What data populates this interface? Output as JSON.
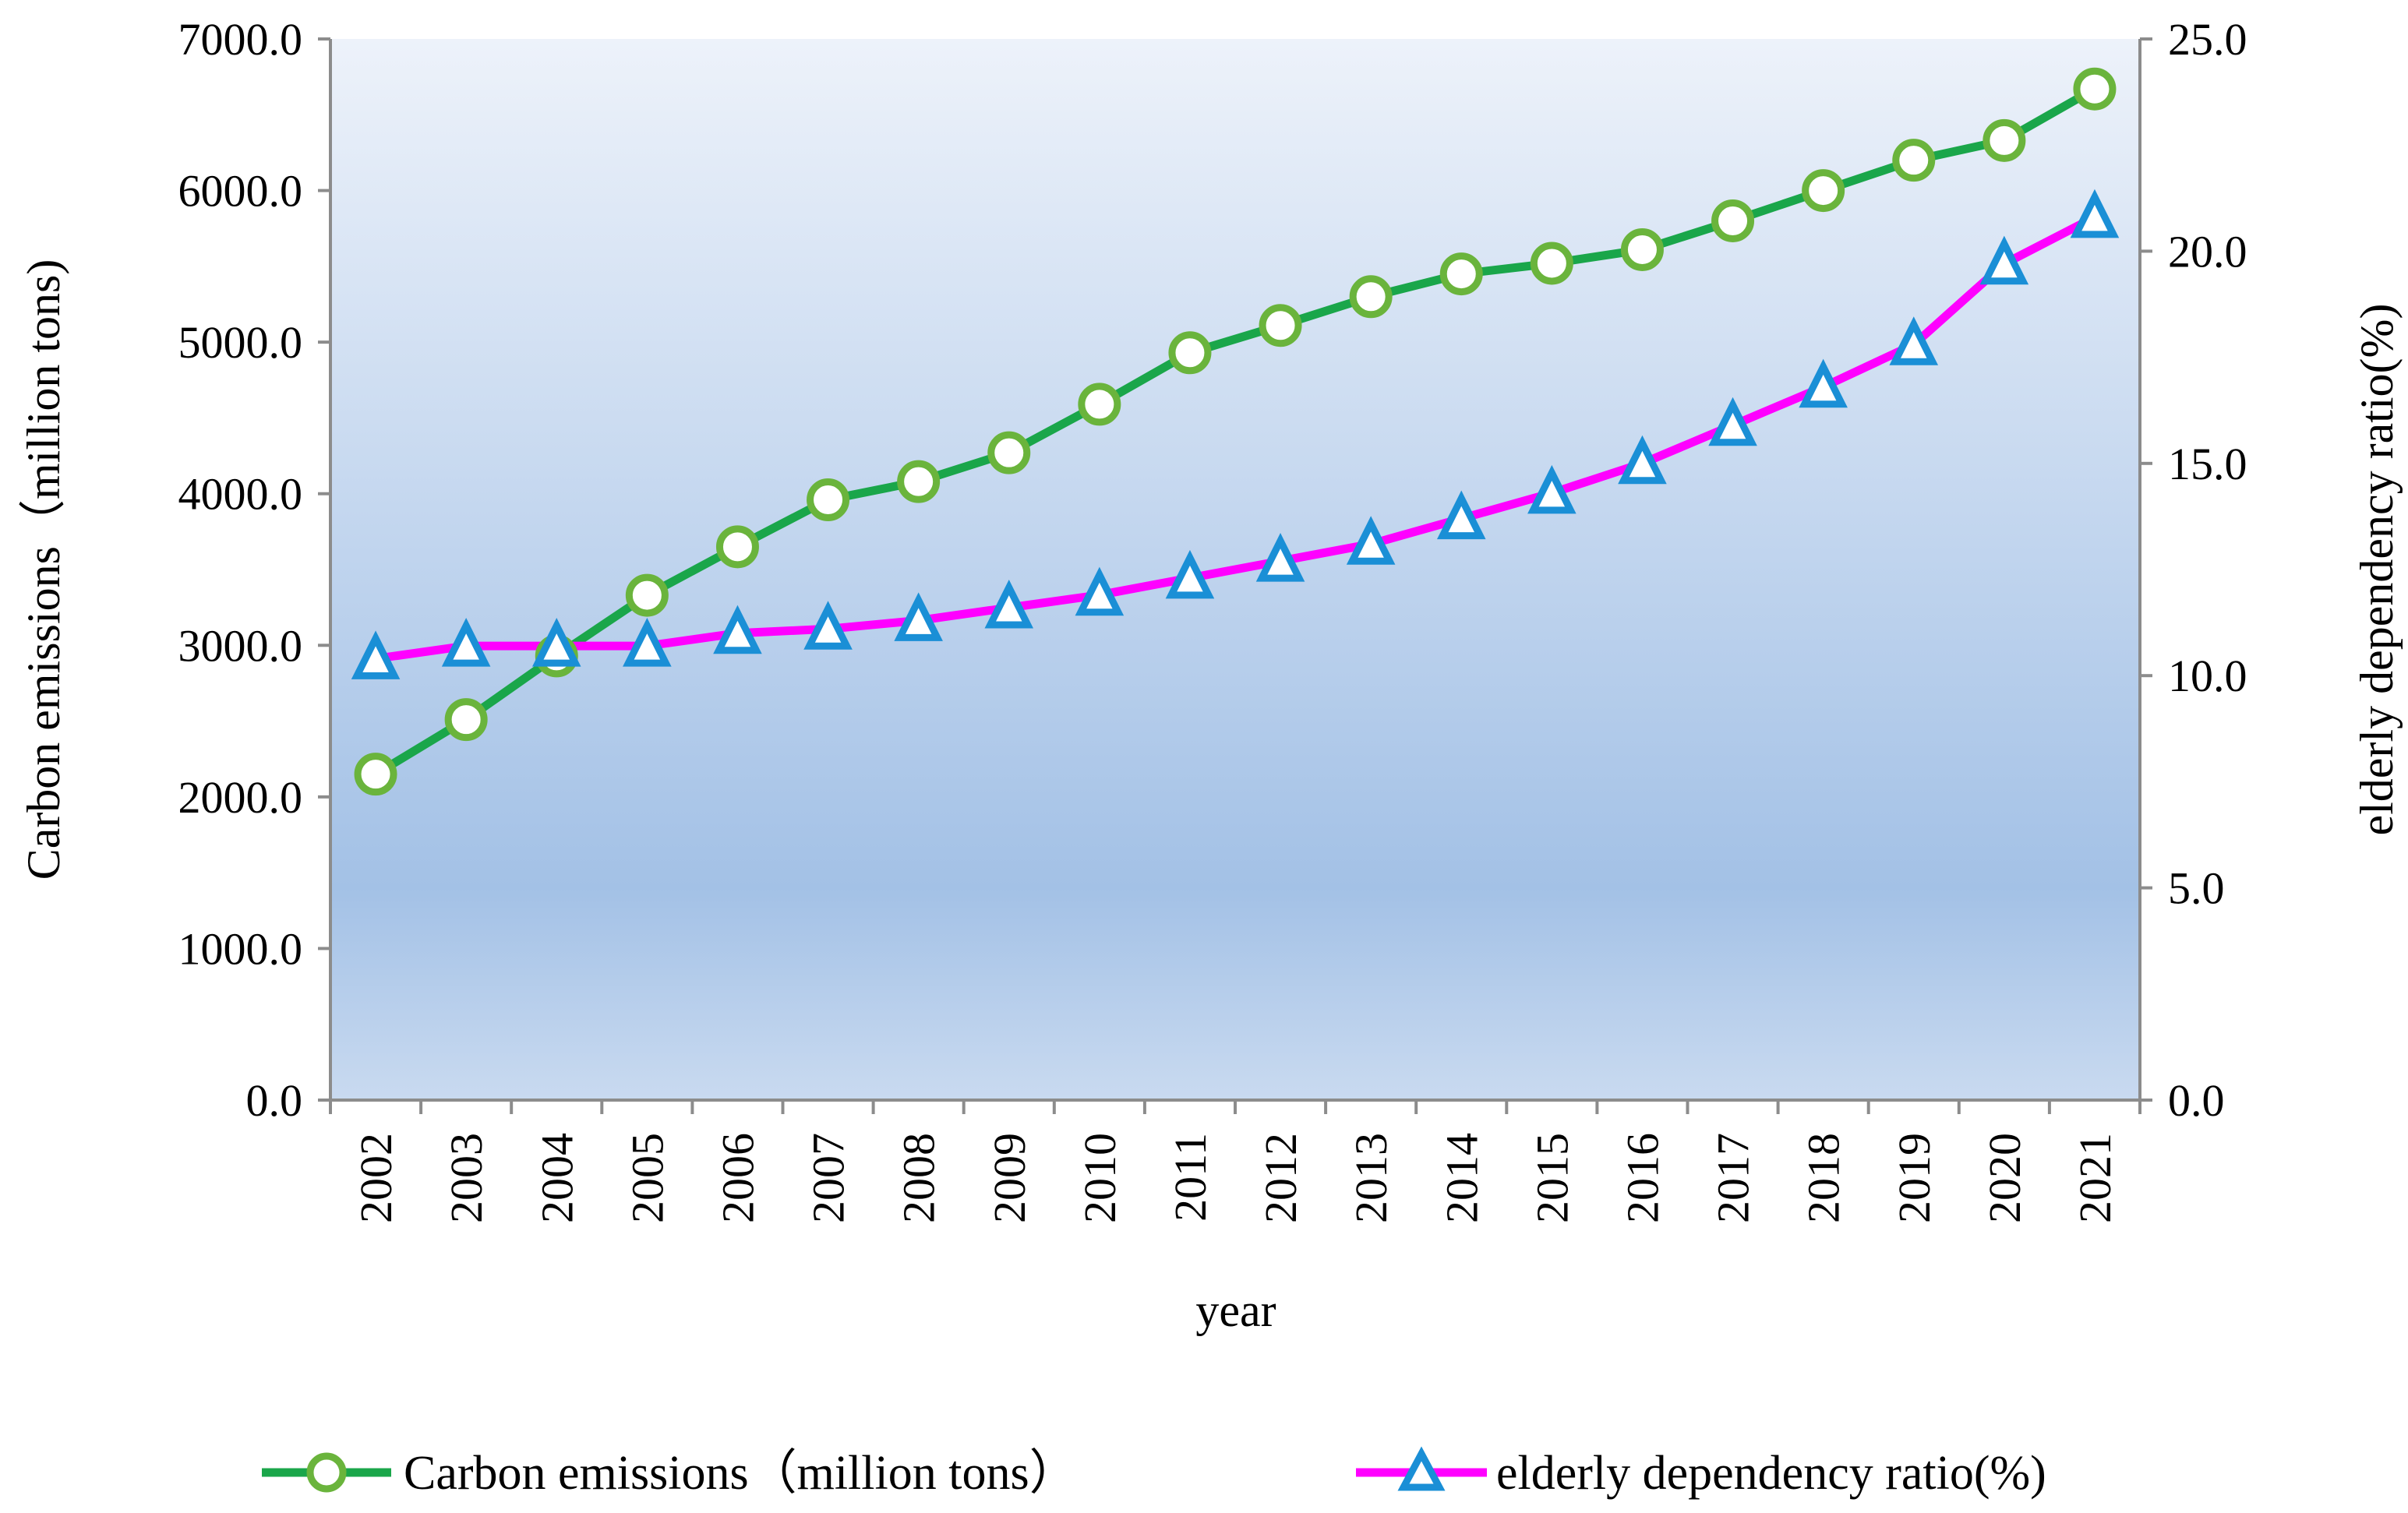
{
  "chart_data": {
    "type": "line",
    "title": "",
    "xlabel": "year",
    "ylabel_left": "Carbon emissions（million tons)",
    "ylabel_right": "elderly dependency ratio(%)",
    "ylim_left": [
      0,
      7000
    ],
    "ylim_right": [
      0,
      25
    ],
    "grid": false,
    "legend_position": "bottom",
    "categories": [
      "2002",
      "2003",
      "2004",
      "2005",
      "2006",
      "2007",
      "2008",
      "2009",
      "2010",
      "2011",
      "2012",
      "2013",
      "2014",
      "2015",
      "2016",
      "2017",
      "2018",
      "2019",
      "2020",
      "2021"
    ],
    "left_ticks": [
      "0.0",
      "1000.0",
      "2000.0",
      "3000.0",
      "4000.0",
      "5000.0",
      "6000.0",
      "7000.0"
    ],
    "right_ticks": [
      "0.0",
      "5.0",
      "10.0",
      "15.0",
      "20.0",
      "25.0"
    ],
    "series": [
      {
        "name": "Carbon emissions（million tons）",
        "axis": "left",
        "color": "#1aa64a",
        "marker": "circle",
        "marker_stroke": "#6ab43c",
        "values": [
          2150,
          2510,
          2930,
          3330,
          3650,
          3960,
          4080,
          4270,
          4590,
          4930,
          5110,
          5300,
          5450,
          5520,
          5610,
          5800,
          6000,
          6200,
          6330,
          6670
        ]
      },
      {
        "name": "elderly dependency ratio(%)",
        "axis": "right",
        "color": "#ff00ff",
        "marker": "triangle",
        "marker_stroke": "#1a8fd6",
        "values": [
          10.4,
          10.7,
          10.7,
          10.7,
          11.0,
          11.1,
          11.3,
          11.6,
          11.9,
          12.3,
          12.7,
          13.1,
          13.7,
          14.3,
          15.0,
          15.9,
          16.8,
          17.8,
          19.7,
          20.8
        ]
      }
    ]
  },
  "colors": {
    "plot_top": "#ecf1f9",
    "plot_mid": "#a3c1e6",
    "plot_bottom": "#c7d8ef",
    "axis": "#8c8c8c"
  }
}
